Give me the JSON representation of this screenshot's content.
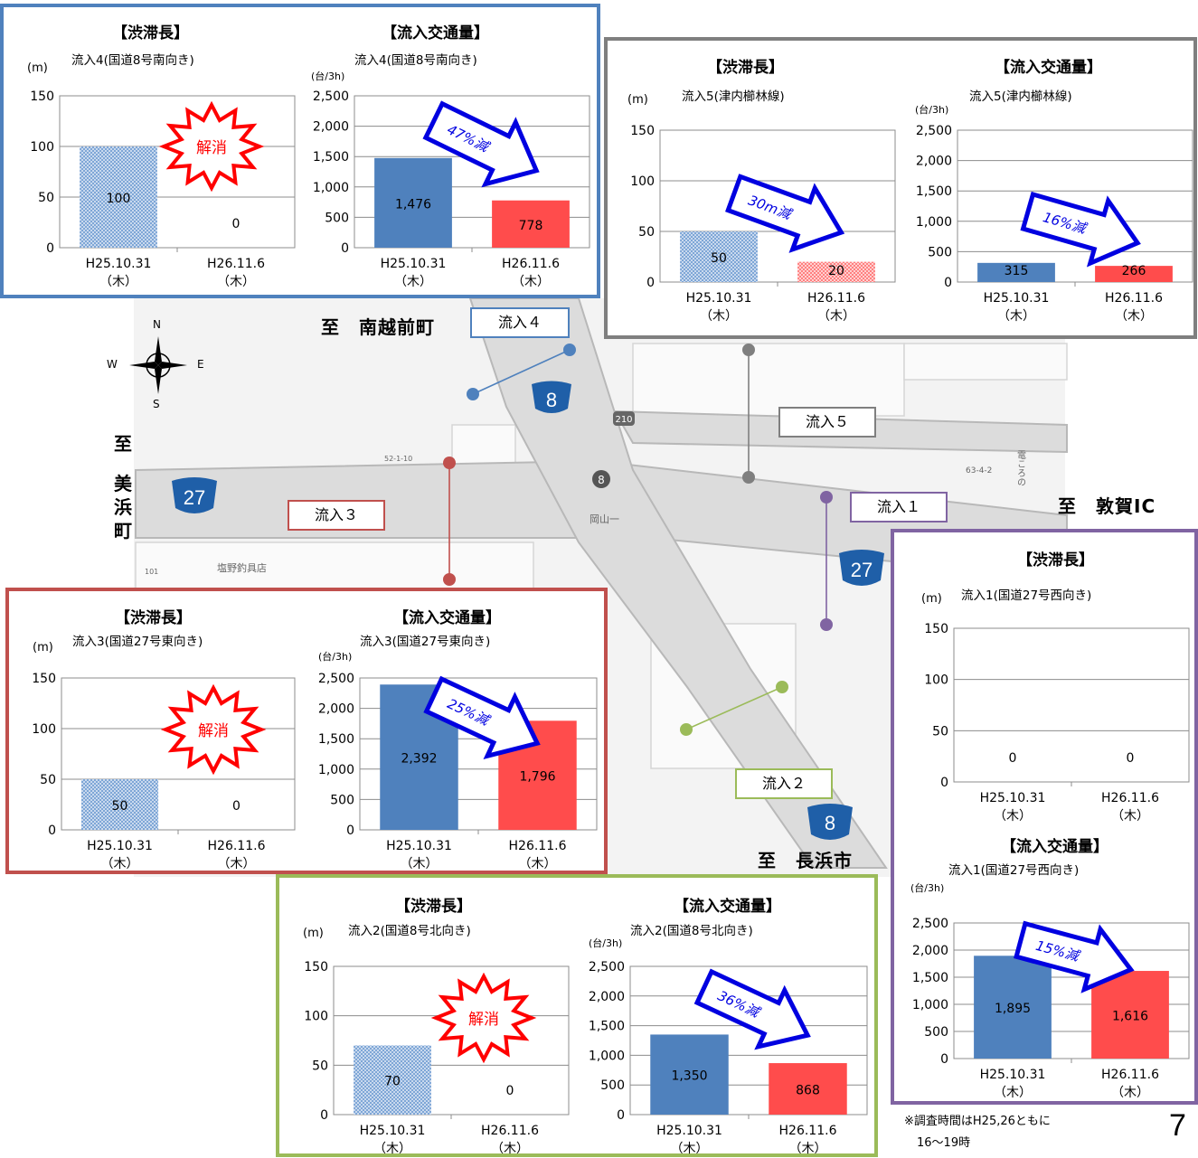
{
  "colors": {
    "panel_inflow4": "#4f81bd",
    "panel_inflow5": "#7f7f7f",
    "panel_inflow3": "#c0504d",
    "panel_inflow1": "#8064a2",
    "panel_inflow2": "#9bbb59",
    "bar_before": "#4f81bd",
    "bar_after": "#ff4c4c",
    "burst_red": "#ff0000",
    "arrow_blue": "#0000e0"
  },
  "map": {
    "place_north": "至　南越前町",
    "place_west_chars": [
      "至",
      "美",
      "浜",
      "町"
    ],
    "place_east": "至　敦賀IC",
    "place_south": "至　長浜市",
    "route_8": "8",
    "route_27": "27",
    "route_210": "210",
    "map_text_okayama": "岡山一",
    "map_text_shop": "塩野釣具店",
    "map_text_block": "63-4-2",
    "map_text_lot": "52-1-10",
    "map_text_lot2": "101",
    "map_text_vertical": "電ころの",
    "compass": {
      "n": "N",
      "s": "S",
      "e": "E",
      "w": "W"
    },
    "tags": {
      "inflow1": "流入１",
      "inflow2": "流入２",
      "inflow3": "流入３",
      "inflow4": "流入４",
      "inflow5": "流入５"
    }
  },
  "labels": {
    "queue_title": "【渋滞長】",
    "volume_title": "【流入交通量】",
    "unit_m": "(m)",
    "unit_vol": "(台/3h)",
    "resolved": "解消",
    "date_before": "H25.10.31",
    "date_before_day": "（木）",
    "date_after": "H26.11.6",
    "date_after_day": "（木）"
  },
  "panels": {
    "inflow4": {
      "queue_subtitle": "流入4(国道8号南向き)",
      "volume_subtitle": "流入4(国道8号南向き)",
      "reduction": "47%減"
    },
    "inflow5": {
      "queue_subtitle": "流入5(津内櫛林線)",
      "volume_subtitle": "流入5(津内櫛林線)",
      "queue_reduction": "30m減",
      "volume_reduction": "16%減"
    },
    "inflow3": {
      "queue_subtitle": "流入3(国道27号東向き)",
      "volume_subtitle": "流入3(国道27号東向き)",
      "reduction": "25%減"
    },
    "inflow1": {
      "queue_subtitle": "流入1(国道27号西向き)",
      "volume_subtitle": "流入1(国道27号西向き)",
      "reduction": "15%減"
    },
    "inflow2": {
      "queue_subtitle": "流入2(国道8号北向き)",
      "volume_subtitle": "流入2(国道8号北向き)",
      "reduction": "36%減"
    }
  },
  "footer": {
    "note_line1": "※調査時間はH25,26ともに",
    "note_line2": "16〜19時",
    "page_number": "7"
  },
  "chart_data": [
    {
      "id": "inflow4-queue",
      "type": "bar",
      "title": "【渋滞長】",
      "subtitle": "流入4(国道8号南向き)",
      "ylabel": "(m)",
      "categories": [
        "H25.10.31（木）",
        "H26.11.6（木）"
      ],
      "values": [
        100,
        0
      ],
      "value_labels": [
        "100",
        "0"
      ],
      "ylim": [
        0,
        150
      ],
      "yticks": [
        0,
        50,
        100,
        150
      ],
      "tick_labels": [
        "0",
        "50",
        "100",
        "150"
      ],
      "grid": true,
      "style": "pattern",
      "annotation": "解消"
    },
    {
      "id": "inflow4-volume",
      "type": "bar",
      "title": "【流入交通量】",
      "subtitle": "流入4(国道8号南向き)",
      "ylabel": "(台/3h)",
      "categories": [
        "H25.10.31（木）",
        "H26.11.6（木）"
      ],
      "values": [
        1476,
        778
      ],
      "value_labels": [
        "1,476",
        "778"
      ],
      "ylim": [
        0,
        2500
      ],
      "yticks": [
        0,
        500,
        1000,
        1500,
        2000,
        2500
      ],
      "tick_labels": [
        "0",
        "500",
        "1,000",
        "1,500",
        "2,000",
        "2,500"
      ],
      "grid": true,
      "style": "solid",
      "annotation": "47%減"
    },
    {
      "id": "inflow5-queue",
      "type": "bar",
      "title": "【渋滞長】",
      "subtitle": "流入5(津内櫛林線)",
      "ylabel": "(m)",
      "categories": [
        "H25.10.31（木）",
        "H26.11.6（木）"
      ],
      "values": [
        50,
        20
      ],
      "value_labels": [
        "50",
        "20"
      ],
      "ylim": [
        0,
        150
      ],
      "yticks": [
        0,
        50,
        100,
        150
      ],
      "tick_labels": [
        "0",
        "50",
        "100",
        "150"
      ],
      "grid": true,
      "style": "pattern",
      "annotation": "30m減"
    },
    {
      "id": "inflow5-volume",
      "type": "bar",
      "title": "【流入交通量】",
      "subtitle": "流入5(津内櫛林線)",
      "ylabel": "(台/3h)",
      "categories": [
        "H25.10.31（木）",
        "H26.11.6（木）"
      ],
      "values": [
        315,
        266
      ],
      "value_labels": [
        "315",
        "266"
      ],
      "ylim": [
        0,
        2500
      ],
      "yticks": [
        0,
        500,
        1000,
        1500,
        2000,
        2500
      ],
      "tick_labels": [
        "0",
        "500",
        "1,000",
        "1,500",
        "2,000",
        "2,500"
      ],
      "grid": true,
      "style": "solid",
      "annotation": "16%減"
    },
    {
      "id": "inflow3-queue",
      "type": "bar",
      "title": "【渋滞長】",
      "subtitle": "流入3(国道27号東向き)",
      "ylabel": "(m)",
      "categories": [
        "H25.10.31（木）",
        "H26.11.6（木）"
      ],
      "values": [
        50,
        0
      ],
      "value_labels": [
        "50",
        "0"
      ],
      "ylim": [
        0,
        150
      ],
      "yticks": [
        0,
        50,
        100,
        150
      ],
      "tick_labels": [
        "0",
        "50",
        "100",
        "150"
      ],
      "grid": true,
      "style": "pattern",
      "annotation": "解消"
    },
    {
      "id": "inflow3-volume",
      "type": "bar",
      "title": "【流入交通量】",
      "subtitle": "流入3(国道27号東向き)",
      "ylabel": "(台/3h)",
      "categories": [
        "H25.10.31（木）",
        "H26.11.6（木）"
      ],
      "values": [
        2392,
        1796
      ],
      "value_labels": [
        "2,392",
        "1,796"
      ],
      "ylim": [
        0,
        2500
      ],
      "yticks": [
        0,
        500,
        1000,
        1500,
        2000,
        2500
      ],
      "tick_labels": [
        "0",
        "500",
        "1,000",
        "1,500",
        "2,000",
        "2,500"
      ],
      "grid": true,
      "style": "solid",
      "annotation": "25%減"
    },
    {
      "id": "inflow1-queue",
      "type": "bar",
      "title": "【渋滞長】",
      "subtitle": "流入1(国道27号西向き)",
      "ylabel": "(m)",
      "categories": [
        "H25.10.31（木）",
        "H26.11.6（木）"
      ],
      "values": [
        0,
        0
      ],
      "value_labels": [
        "0",
        "0"
      ],
      "ylim": [
        0,
        150
      ],
      "yticks": [
        0,
        50,
        100,
        150
      ],
      "tick_labels": [
        "0",
        "50",
        "100",
        "150"
      ],
      "grid": true,
      "style": "pattern",
      "annotation": ""
    },
    {
      "id": "inflow1-volume",
      "type": "bar",
      "title": "【流入交通量】",
      "subtitle": "流入1(国道27号西向き)",
      "ylabel": "(台/3h)",
      "categories": [
        "H25.10.31（木）",
        "H26.11.6（木）"
      ],
      "values": [
        1895,
        1616
      ],
      "value_labels": [
        "1,895",
        "1,616"
      ],
      "ylim": [
        0,
        2500
      ],
      "yticks": [
        0,
        500,
        1000,
        1500,
        2000,
        2500
      ],
      "tick_labels": [
        "0",
        "500",
        "1,000",
        "1,500",
        "2,000",
        "2,500"
      ],
      "grid": true,
      "style": "solid",
      "annotation": "15%減"
    },
    {
      "id": "inflow2-queue",
      "type": "bar",
      "title": "【渋滞長】",
      "subtitle": "流入2(国道8号北向き)",
      "ylabel": "(m)",
      "categories": [
        "H25.10.31（木）",
        "H26.11.6（木）"
      ],
      "values": [
        70,
        0
      ],
      "value_labels": [
        "70",
        "0"
      ],
      "ylim": [
        0,
        150
      ],
      "yticks": [
        0,
        50,
        100,
        150
      ],
      "tick_labels": [
        "0",
        "50",
        "100",
        "150"
      ],
      "grid": true,
      "style": "pattern",
      "annotation": "解消"
    },
    {
      "id": "inflow2-volume",
      "type": "bar",
      "title": "【流入交通量】",
      "subtitle": "流入2(国道8号北向き)",
      "ylabel": "(台/3h)",
      "categories": [
        "H25.10.31（木）",
        "H26.11.6（木）"
      ],
      "values": [
        1350,
        868
      ],
      "value_labels": [
        "1,350",
        "868"
      ],
      "ylim": [
        0,
        2500
      ],
      "yticks": [
        0,
        500,
        1000,
        1500,
        2000,
        2500
      ],
      "tick_labels": [
        "0",
        "500",
        "1,000",
        "1,500",
        "2,000",
        "2,500"
      ],
      "grid": true,
      "style": "solid",
      "annotation": "36%減"
    }
  ]
}
